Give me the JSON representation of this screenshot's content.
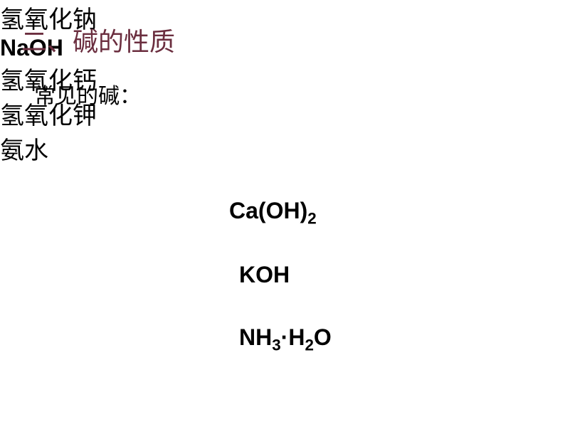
{
  "section_title": "二、碱的性质",
  "subtitle": "常见的碱：",
  "compounds": [
    {
      "chinese_name": "氢氧化钠",
      "formula_parts": [
        "NaOH"
      ]
    },
    {
      "chinese_name": "氢氧化钙",
      "formula_parts": [
        "Ca(OH)",
        "2"
      ]
    },
    {
      "chinese_name": "氢氧化钾",
      "formula_parts": [
        "KOH"
      ]
    },
    {
      "chinese_name": "氨水",
      "formula_parts": [
        "NH",
        "3",
        "·H",
        "2",
        "O"
      ]
    }
  ],
  "colors": {
    "title_color": "#6b2e3f",
    "text_color": "#000000",
    "background_color": "#ffffff"
  },
  "typography": {
    "title_fontsize": 36,
    "subtitle_fontsize": 30,
    "chinese_fontsize": 34,
    "formula_fontsize": 32
  }
}
